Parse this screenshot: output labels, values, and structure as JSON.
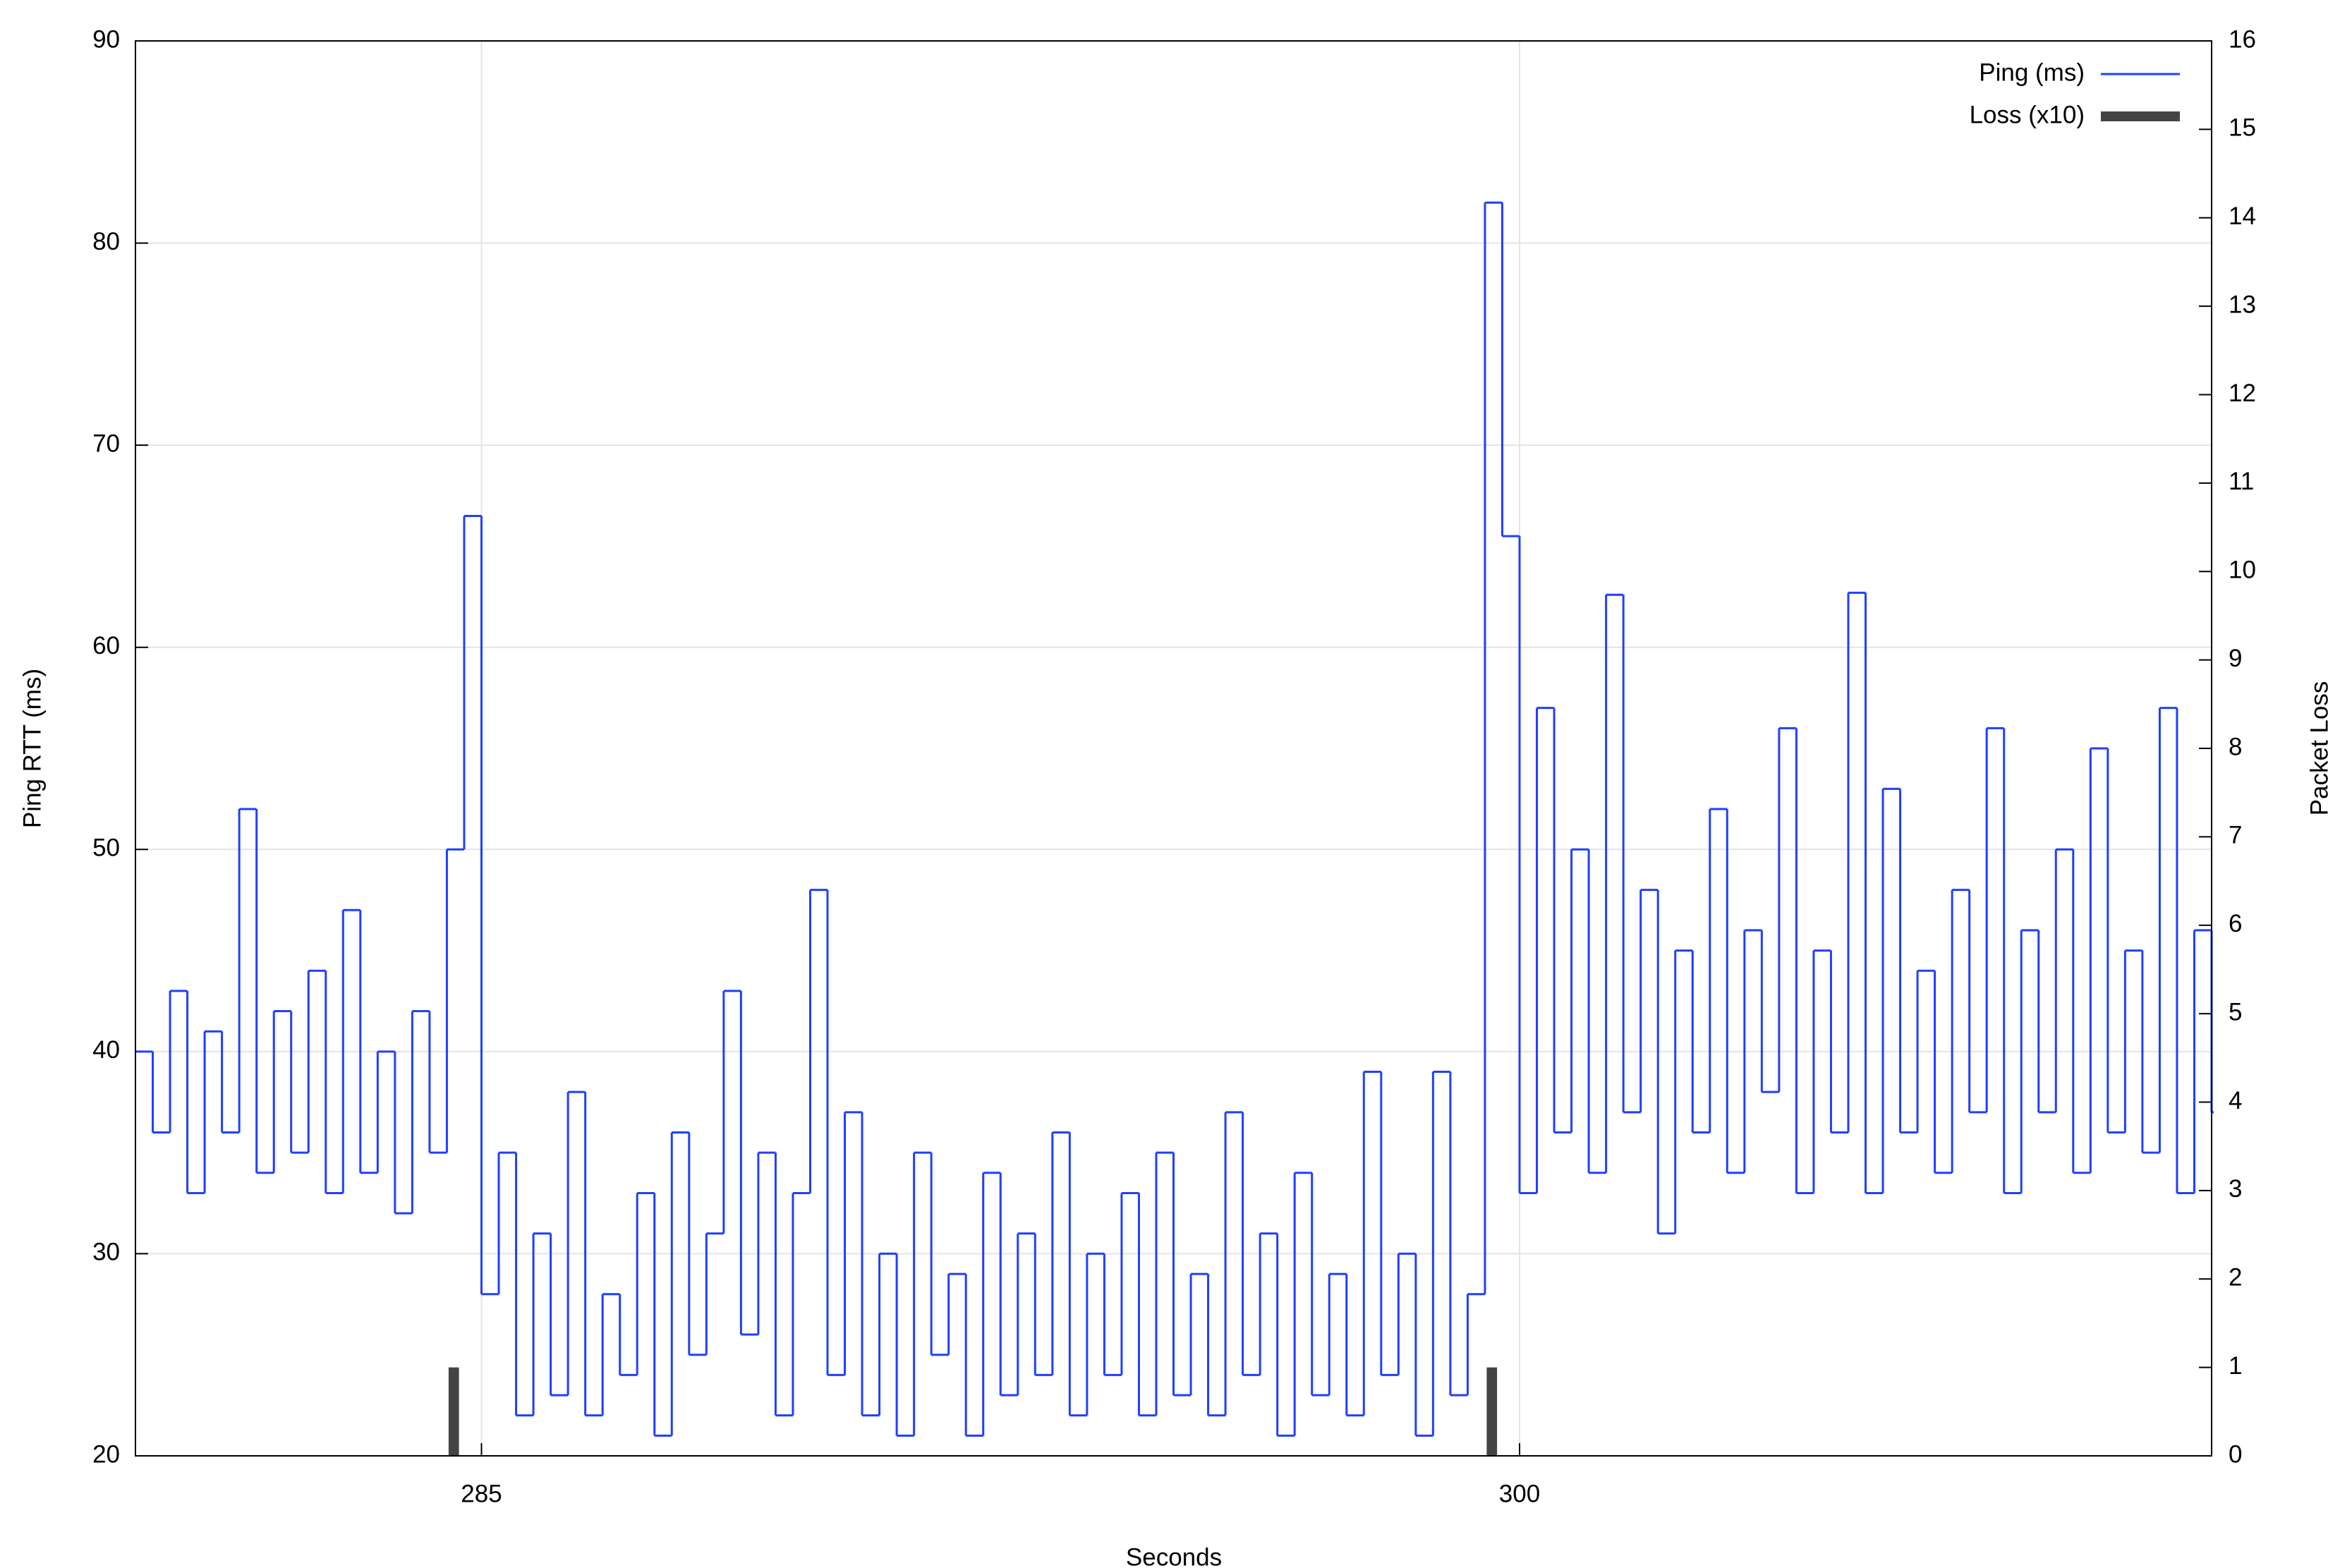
{
  "chart_data": {
    "type": "line",
    "xlabel": "Seconds",
    "ylabel": "Ping RTT (ms)",
    "y2label": "Packet Loss",
    "xlim": [
      280,
      310
    ],
    "xticks": [
      285,
      300
    ],
    "ylim": [
      20,
      90
    ],
    "yticks": [
      20,
      30,
      40,
      50,
      60,
      70,
      80,
      90
    ],
    "y2lim": [
      0,
      16
    ],
    "y2ticks": [
      0,
      1,
      2,
      3,
      4,
      5,
      6,
      7,
      8,
      9,
      10,
      11,
      12,
      13,
      14,
      15,
      16
    ],
    "grid": true,
    "legend": "top-right",
    "series": [
      {
        "name": "Ping (ms)",
        "color": "#1f3fff",
        "type": "step",
        "x": [
          280,
          280.25,
          280.5,
          280.75,
          281,
          281.25,
          281.5,
          281.75,
          282,
          282.25,
          282.5,
          282.75,
          283,
          283.25,
          283.5,
          283.75,
          284,
          284.25,
          284.5,
          284.75,
          285,
          285.25,
          285.5,
          285.75,
          286,
          286.25,
          286.5,
          286.75,
          287,
          287.25,
          287.5,
          287.75,
          288,
          288.25,
          288.5,
          288.75,
          289,
          289.25,
          289.5,
          289.75,
          290,
          290.25,
          290.5,
          290.75,
          291,
          291.25,
          291.5,
          291.75,
          292,
          292.25,
          292.5,
          292.75,
          293,
          293.25,
          293.5,
          293.75,
          294,
          294.25,
          294.5,
          294.75,
          295,
          295.25,
          295.5,
          295.75,
          296,
          296.25,
          296.5,
          296.75,
          297,
          297.25,
          297.5,
          297.75,
          298,
          298.25,
          298.5,
          298.75,
          299,
          299.25,
          299.5,
          299.75,
          300,
          300.25,
          300.5,
          300.75,
          301,
          301.25,
          301.5,
          301.75,
          302,
          302.25,
          302.5,
          302.75,
          303,
          303.25,
          303.5,
          303.75,
          304,
          304.25,
          304.5,
          304.75,
          305,
          305.25,
          305.5,
          305.75,
          306,
          306.25,
          306.5,
          306.75,
          307,
          307.25,
          307.5,
          307.75,
          308,
          308.25,
          308.5,
          308.75,
          309,
          309.25,
          309.5,
          309.75,
          310
        ],
        "values": [
          40,
          36,
          43,
          33,
          41,
          36,
          52,
          34,
          42,
          35,
          44,
          33,
          47,
          34,
          40,
          32,
          42,
          35,
          50,
          66.5,
          28,
          35,
          22,
          31,
          23,
          38,
          22,
          28,
          24,
          33,
          21,
          36,
          25,
          31,
          43,
          26,
          35,
          22,
          33,
          48,
          24,
          37,
          22,
          30,
          21,
          35,
          25,
          29,
          21,
          34,
          23,
          31,
          24,
          36,
          22,
          30,
          24,
          33,
          22,
          35,
          23,
          29,
          22,
          37,
          24,
          31,
          21,
          34,
          23,
          29,
          22,
          39,
          24,
          30,
          21,
          39,
          23,
          28,
          82,
          65.5,
          33,
          57,
          36,
          50,
          34,
          62.6,
          37,
          48,
          31,
          45,
          36,
          52,
          34,
          46,
          38,
          56,
          33,
          45,
          36,
          62.7,
          33,
          53,
          36,
          44,
          34,
          48,
          37,
          56,
          33,
          46,
          37,
          50,
          34,
          55,
          36,
          45,
          35,
          57,
          33,
          46,
          37
        ]
      },
      {
        "name": "Loss (x10)",
        "color": "#444444",
        "type": "bar",
        "axis": "y2",
        "x": [
          284.6,
          299.6
        ],
        "values": [
          1,
          1
        ]
      }
    ]
  }
}
